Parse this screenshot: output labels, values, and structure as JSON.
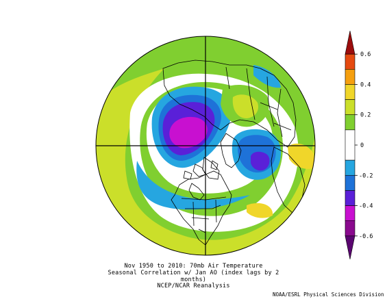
{
  "caption": {
    "line1": "Nov 1950 to 2010: 70mb Air Temperature",
    "line2": "Seasonal Correlation w/ Jan AO (index lags by 2 months)",
    "line3": "NCEP/NCAR Reanalysis"
  },
  "credit": "NOAA/ESRL Physical Sciences Division",
  "colorbar": {
    "labels": [
      "0.6",
      "0.4",
      "0.2",
      "0",
      "-0.2",
      "-0.4",
      "-0.6"
    ],
    "bins": [
      {
        "color": "#9c0d0d",
        "from": 0.6,
        "to": 0.7
      },
      {
        "color": "#e54a10",
        "from": 0.5,
        "to": 0.6
      },
      {
        "color": "#f59f0f",
        "from": 0.4,
        "to": 0.5
      },
      {
        "color": "#f0d62a",
        "from": 0.3,
        "to": 0.4
      },
      {
        "color": "#cbdf2a",
        "from": 0.2,
        "to": 0.3
      },
      {
        "color": "#80cf30",
        "from": 0.1,
        "to": 0.2
      },
      {
        "color": "#ffffff",
        "from": -0.1,
        "to": 0.1
      },
      {
        "color": "#26a6e0",
        "from": -0.2,
        "to": -0.1
      },
      {
        "color": "#1e72d8",
        "from": -0.3,
        "to": -0.2
      },
      {
        "color": "#5a20d8",
        "from": -0.4,
        "to": -0.3
      },
      {
        "color": "#c810d0",
        "from": -0.5,
        "to": -0.4
      },
      {
        "color": "#8a0a8e",
        "from": -0.6,
        "to": -0.5
      },
      {
        "color": "#5a0570",
        "from": -0.7,
        "to": -0.6
      }
    ]
  },
  "map": {
    "projection": "north polar stereographic",
    "field_colors": {
      "pos_weak": "#80cf30",
      "pos_mid": "#cbdf2a",
      "pos_strong": "#f0d62a",
      "neutral": "#ffffff",
      "neg_weak": "#26a6e0",
      "neg_mid": "#1e72d8",
      "neg_strong": "#5a20d8",
      "neg_core": "#c810d0"
    }
  }
}
